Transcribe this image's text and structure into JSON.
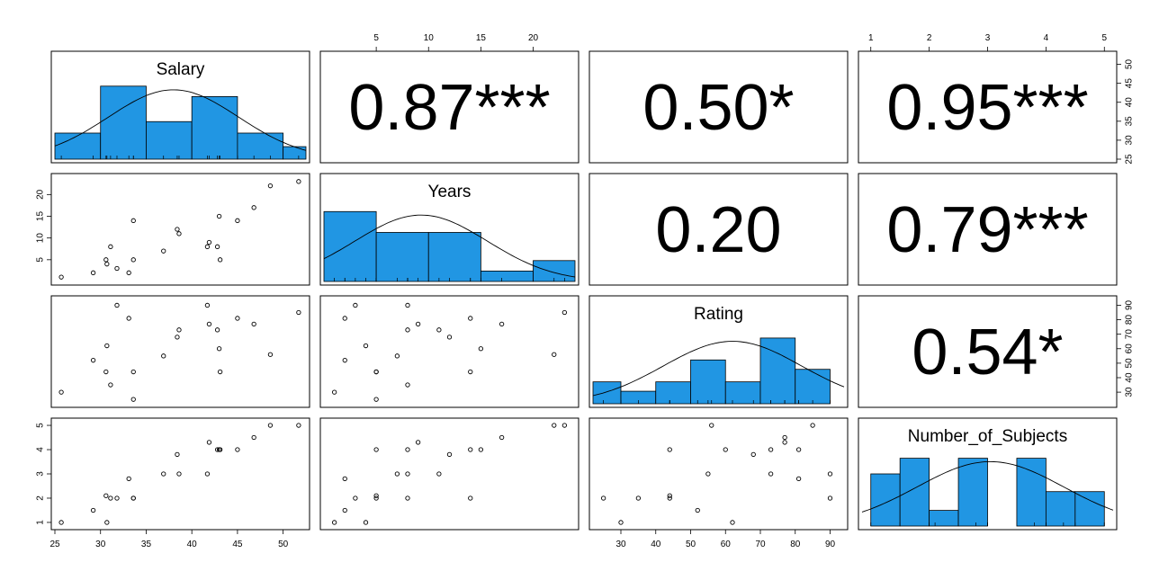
{
  "chart_data": {
    "type": "scatter",
    "variables": [
      "Salary",
      "Years",
      "Rating",
      "Number_of_Subjects"
    ],
    "ranges": {
      "Salary": [
        25,
        52.5
      ],
      "Years": [
        0,
        24
      ],
      "Rating": [
        22,
        94
      ],
      "Number_of_Subjects": [
        0.85,
        5.15
      ]
    },
    "ticks": {
      "Salary": [
        "25",
        "30",
        "35",
        "40",
        "45",
        "50"
      ],
      "Years": [
        "5",
        "10",
        "15",
        "20"
      ],
      "Rating": [
        "30",
        "40",
        "50",
        "60",
        "70",
        "80",
        "90"
      ],
      "Number_of_Subjects": [
        "1",
        "2",
        "3",
        "4",
        "5"
      ]
    },
    "correlations": [
      {
        "row": 0,
        "col": 1,
        "label": "0.87***"
      },
      {
        "row": 0,
        "col": 2,
        "label": "0.50*"
      },
      {
        "row": 0,
        "col": 3,
        "label": "0.95***"
      },
      {
        "row": 1,
        "col": 2,
        "label": "0.20"
      },
      {
        "row": 1,
        "col": 3,
        "label": "0.79***"
      },
      {
        "row": 2,
        "col": 3,
        "label": "0.54*"
      }
    ],
    "observations": [
      {
        "Salary": 25.7,
        "Years": 1,
        "Rating": 30,
        "Number_of_Subjects": 1
      },
      {
        "Salary": 29.2,
        "Years": 2,
        "Rating": 52,
        "Number_of_Subjects": 1.5
      },
      {
        "Salary": 30.6,
        "Years": 5,
        "Rating": 44,
        "Number_of_Subjects": 2.1
      },
      {
        "Salary": 30.7,
        "Years": 4,
        "Rating": 62,
        "Number_of_Subjects": 1
      },
      {
        "Salary": 31.1,
        "Years": 8,
        "Rating": 35,
        "Number_of_Subjects": 2
      },
      {
        "Salary": 31.8,
        "Years": 3,
        "Rating": 90,
        "Number_of_Subjects": 2
      },
      {
        "Salary": 33.1,
        "Years": 2,
        "Rating": 81,
        "Number_of_Subjects": 2.8
      },
      {
        "Salary": 33.6,
        "Years": 14,
        "Rating": 44,
        "Number_of_Subjects": 2
      },
      {
        "Salary": 33.6,
        "Years": 5,
        "Rating": 25,
        "Number_of_Subjects": 2
      },
      {
        "Salary": 36.9,
        "Years": 7,
        "Rating": 55,
        "Number_of_Subjects": 3
      },
      {
        "Salary": 38.4,
        "Years": 12,
        "Rating": 68,
        "Number_of_Subjects": 3.8
      },
      {
        "Salary": 38.6,
        "Years": 11,
        "Rating": 73,
        "Number_of_Subjects": 3
      },
      {
        "Salary": 41.7,
        "Years": 8,
        "Rating": 90,
        "Number_of_Subjects": 3
      },
      {
        "Salary": 41.9,
        "Years": 9,
        "Rating": 77,
        "Number_of_Subjects": 4.3
      },
      {
        "Salary": 42.8,
        "Years": 8,
        "Rating": 73,
        "Number_of_Subjects": 4
      },
      {
        "Salary": 43,
        "Years": 15,
        "Rating": 60,
        "Number_of_Subjects": 4
      },
      {
        "Salary": 43.1,
        "Years": 5,
        "Rating": 44,
        "Number_of_Subjects": 4
      },
      {
        "Salary": 45,
        "Years": 14,
        "Rating": 81,
        "Number_of_Subjects": 4
      },
      {
        "Salary": 46.8,
        "Years": 17,
        "Rating": 77,
        "Number_of_Subjects": 4.5
      },
      {
        "Salary": 48.6,
        "Years": 22,
        "Rating": 56,
        "Number_of_Subjects": 5
      },
      {
        "Salary": 51.7,
        "Years": 23,
        "Rating": 85,
        "Number_of_Subjects": 5
      }
    ],
    "histograms": {
      "Salary": {
        "breaks": [
          25,
          30,
          35,
          40,
          45,
          50,
          52.5
        ],
        "heights": [
          0.25,
          0.7,
          0.36,
          0.6,
          0.25,
          0.12
        ]
      },
      "Years": {
        "breaks": [
          0,
          5,
          10,
          15,
          20,
          24
        ],
        "heights": [
          0.67,
          0.47,
          0.47,
          0.1,
          0.2
        ]
      },
      "Rating": {
        "breaks": [
          22,
          30,
          40,
          50,
          60,
          70,
          80,
          90
        ],
        "heights": [
          0.21,
          0.12,
          0.21,
          0.42,
          0.21,
          0.63,
          0.33
        ]
      },
      "Number_of_Subjects": {
        "breaks": [
          1,
          1.5,
          2,
          2.5,
          3,
          3.5,
          4,
          4.5,
          5
        ],
        "heights": [
          0.5,
          0.65,
          0.15,
          0.65,
          0,
          0.65,
          0.33,
          0.33
        ]
      }
    },
    "colors": {
      "bar": "#2196E3",
      "line": "#000000"
    },
    "grid": false
  }
}
